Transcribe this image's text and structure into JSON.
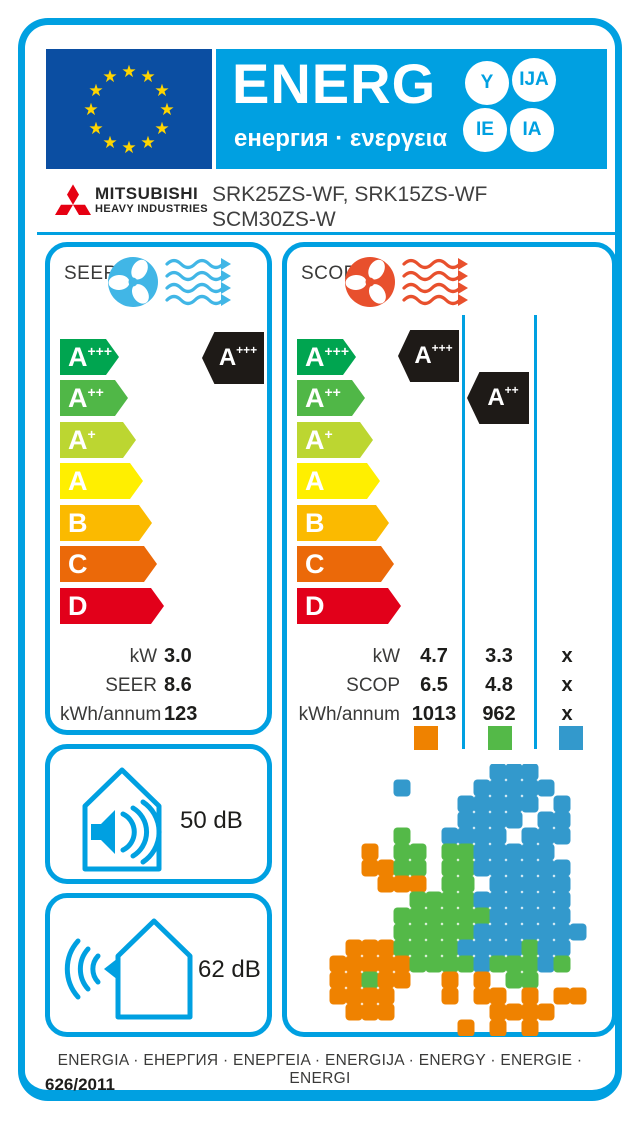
{
  "header": {
    "word_root": "ENERG",
    "subtitle": "енергия · ενεργεια",
    "language_suffixes": [
      "Y",
      "IJA",
      "IE",
      "IA"
    ]
  },
  "brand": {
    "manufacturer": "MITSUBISHI",
    "manufacturer_sub": "HEAVY INDUSTRIES",
    "models_line1": "SRK25ZS-WF, SRK15ZS-WF",
    "models_line2": "SCM30ZS-W"
  },
  "scale": {
    "classes": [
      {
        "base": "A",
        "sup": "+++",
        "color": "#00A550"
      },
      {
        "base": "A",
        "sup": "++",
        "color": "#50B747"
      },
      {
        "base": "A",
        "sup": "+",
        "color": "#BCD631"
      },
      {
        "base": "A",
        "sup": "",
        "color": "#FFEF00"
      },
      {
        "base": "B",
        "sup": "",
        "color": "#FBBA00"
      },
      {
        "base": "C",
        "sup": "",
        "color": "#EB6909"
      },
      {
        "base": "D",
        "sup": "",
        "color": "#E2001A"
      }
    ]
  },
  "seer": {
    "title": "SEER",
    "rating_base": "A",
    "rating_sup": "+++",
    "rows": [
      {
        "label": "kW",
        "value": "3.0"
      },
      {
        "label": "SEER",
        "value": "8.6"
      },
      {
        "label": "kWh/annum",
        "value": "123"
      }
    ]
  },
  "scop": {
    "title": "SCOP",
    "row_labels": [
      "kW",
      "SCOP",
      "kWh/annum"
    ],
    "zones": [
      {
        "name": "warmer",
        "color": "#EF8200",
        "rating_base": "A",
        "rating_sup": "+++",
        "kw": "4.7",
        "scop": "6.5",
        "kwh": "1013"
      },
      {
        "name": "average",
        "color": "#54B948",
        "rating_base": "A",
        "rating_sup": "++",
        "kw": "3.3",
        "scop": "4.8",
        "kwh": "962"
      },
      {
        "name": "colder",
        "color": "#3399CC",
        "kw": "x",
        "scop": "x",
        "kwh": "x"
      }
    ]
  },
  "noise": {
    "indoor": "50 dB",
    "outdoor": "62 dB"
  },
  "footer": {
    "energy_words": "ENERGIA · ЕНЕРГИЯ · ΕΝΕΡΓΕΙΑ · ENERGIJA · ENERGY · ENERGIE · ENERGI",
    "regulation": "626/2011"
  },
  "colors": {
    "accent_cyan": "#00A0E1",
    "eu_flag_blue": "#0B4EA2",
    "star_yellow": "#FFD500",
    "marker_black": "#1E1A17",
    "brand_red": "#E60012"
  }
}
